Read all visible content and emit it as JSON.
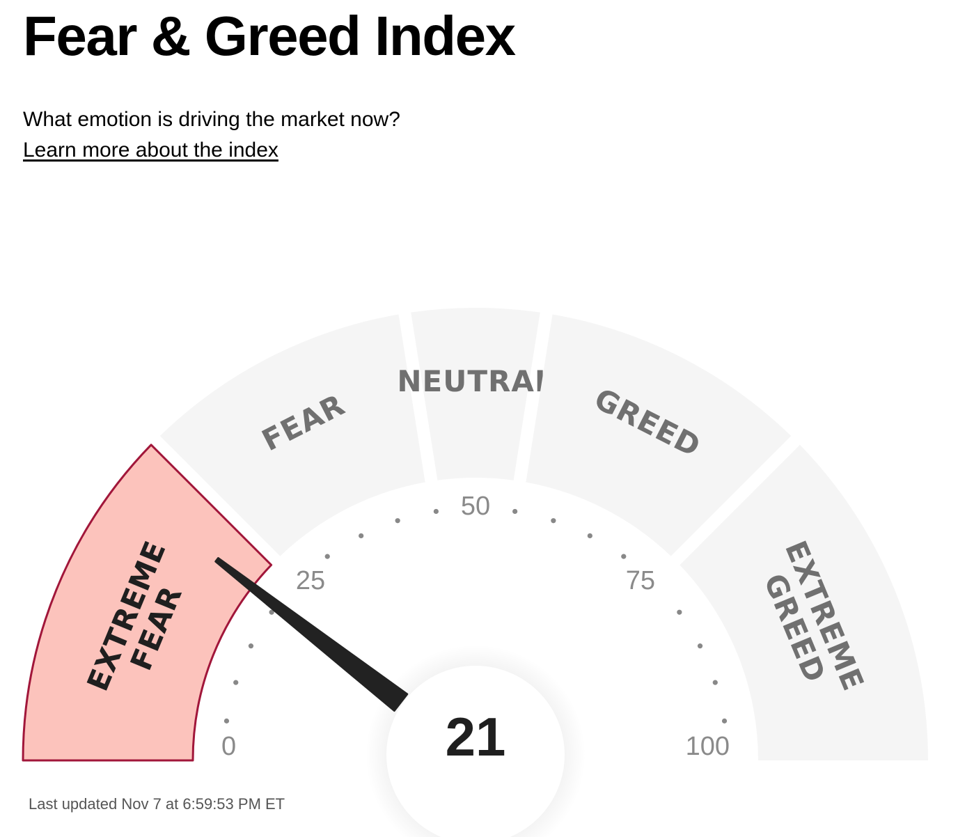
{
  "header": {
    "title": "Fear & Greed Index",
    "subtitle": "What emotion is driving the market now?",
    "learn_more": "Learn more about the index"
  },
  "footer": {
    "last_updated": "Last updated Nov 7 at 6:59:53 PM ET"
  },
  "colors": {
    "active_fill": "#fcc3bc",
    "active_border": "#a1163a",
    "inactive_fill": "#f5f5f5",
    "inactive_text": "#707070",
    "active_text": "#1f1f1f",
    "needle": "#222222",
    "tick_text": "#8a8a8a"
  },
  "chart_data": {
    "type": "gauge",
    "title": "Fear & Greed Index",
    "value": 21,
    "range": [
      0,
      100
    ],
    "tick_labels": [
      "0",
      "25",
      "50",
      "75",
      "100"
    ],
    "tick_values": [
      0,
      25,
      50,
      75,
      100
    ],
    "active_zone": "EXTREME FEAR",
    "zones": [
      {
        "label": "EXTREME FEAR",
        "lines": [
          "EXTREME",
          "FEAR"
        ],
        "from": 0,
        "to": 25
      },
      {
        "label": "FEAR",
        "lines": [
          "FEAR"
        ],
        "from": 25,
        "to": 45
      },
      {
        "label": "NEUTRAL",
        "lines": [
          "NEUTRAL"
        ],
        "from": 45,
        "to": 55
      },
      {
        "label": "GREED",
        "lines": [
          "GREED"
        ],
        "from": 55,
        "to": 75
      },
      {
        "label": "EXTREME GREED",
        "lines": [
          "EXTREME",
          "GREED"
        ],
        "from": 75,
        "to": 100
      }
    ]
  }
}
